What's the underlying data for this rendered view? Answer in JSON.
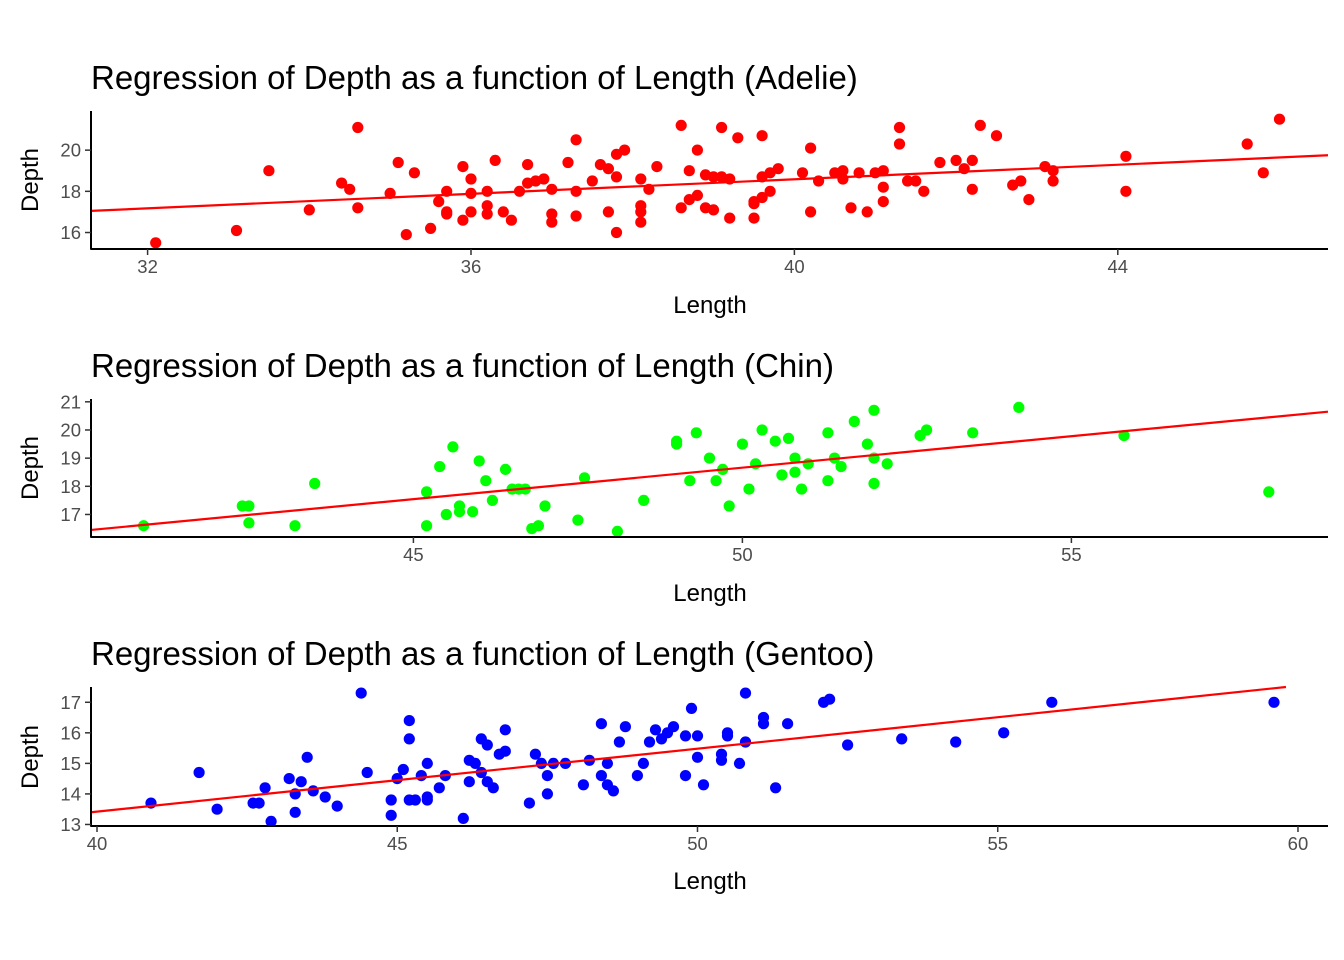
{
  "chart_data": [
    {
      "type": "scatter",
      "title": "Regression of Depth as a function of Length (Adelie)",
      "xlabel": "Length",
      "ylabel": "Depth",
      "xlim": [
        31.3,
        46.6
      ],
      "ylim": [
        15.2,
        21.9
      ],
      "xticks": [
        32,
        36,
        40,
        44
      ],
      "yticks": [
        16,
        18,
        20
      ],
      "color": "#ff0000",
      "line_color": "#ff0000",
      "regression": {
        "x": [
          31.3,
          46.6
        ],
        "y": [
          17.05,
          19.75
        ]
      },
      "series": [
        {
          "x": [
            32.1,
            33.1,
            33.5,
            34.0,
            34.4,
            34.5,
            34.6,
            34.6,
            35.0,
            35.1,
            35.2,
            35.3,
            35.5,
            35.6,
            35.7,
            35.7,
            35.7,
            35.9,
            35.9,
            36.0,
            36.0,
            36.0,
            36.2,
            36.2,
            36.2,
            36.3,
            36.4,
            36.5,
            36.6,
            36.7,
            36.7,
            36.8,
            36.9,
            37.0,
            37.0,
            37.0,
            37.2,
            37.3,
            37.3,
            37.3,
            37.5,
            37.6,
            37.7,
            37.7,
            37.8,
            37.8,
            37.8,
            37.9,
            38.1,
            38.1,
            38.1,
            38.1,
            38.2,
            38.3,
            38.6,
            38.6,
            38.7,
            38.7,
            38.8,
            38.8,
            38.9,
            38.9,
            39.0,
            39.0,
            39.1,
            39.1,
            39.2,
            39.2,
            39.3,
            39.5,
            39.5,
            39.5,
            39.6,
            39.6,
            39.6,
            39.7,
            39.7,
            39.8,
            40.1,
            40.2,
            40.2,
            40.3,
            40.5,
            40.6,
            40.6,
            40.7,
            40.8,
            40.9,
            41.0,
            41.1,
            41.1,
            41.1,
            41.3,
            41.3,
            41.4,
            41.5,
            41.6,
            41.8,
            42.0,
            42.1,
            42.2,
            42.2,
            42.3,
            42.5,
            42.7,
            42.8,
            42.9,
            43.1,
            43.2,
            43.2,
            44.1,
            44.1,
            45.6,
            45.8,
            46.0
          ],
          "y": [
            15.5,
            16.1,
            19.0,
            17.1,
            18.4,
            18.1,
            21.1,
            17.2,
            17.9,
            19.4,
            15.9,
            18.9,
            16.2,
            17.5,
            18.0,
            16.9,
            17.0,
            19.2,
            16.6,
            17.9,
            18.6,
            17.0,
            17.3,
            16.9,
            18.0,
            19.5,
            17.0,
            16.6,
            18.0,
            18.4,
            19.3,
            18.5,
            18.6,
            16.9,
            16.5,
            18.1,
            19.4,
            20.5,
            18.0,
            16.8,
            18.5,
            19.3,
            19.1,
            17.0,
            19.8,
            18.7,
            16.0,
            20.0,
            18.6,
            17.0,
            17.3,
            16.5,
            18.1,
            19.2,
            21.2,
            17.2,
            19.0,
            17.6,
            20.0,
            17.8,
            18.8,
            17.2,
            18.7,
            17.1,
            21.1,
            18.7,
            18.6,
            16.7,
            20.6,
            16.7,
            17.4,
            17.5,
            18.7,
            20.7,
            17.7,
            18.9,
            18.0,
            19.1,
            18.9,
            20.1,
            17.0,
            18.5,
            18.9,
            19.0,
            18.6,
            17.2,
            18.9,
            17.0,
            18.9,
            18.2,
            19.0,
            17.5,
            21.1,
            20.3,
            18.5,
            18.5,
            18.0,
            19.4,
            19.5,
            19.1,
            19.5,
            18.1,
            21.2,
            20.7,
            18.3,
            18.5,
            17.6,
            19.2,
            19.0,
            18.5,
            19.7,
            18.0,
            20.3,
            18.9,
            21.5
          ]
        }
      ]
    },
    {
      "type": "scatter",
      "title": "Regression of Depth as a function of Length (Chin)",
      "xlabel": "Length",
      "ylabel": "Depth",
      "xlim": [
        40.1,
        58.9
      ],
      "ylim": [
        16.2,
        21.1
      ],
      "xticks": [
        45,
        50,
        55
      ],
      "yticks": [
        17,
        18,
        19,
        20,
        21
      ],
      "color": "#00ff00",
      "line_color": "#ff0000",
      "regression": {
        "x": [
          40.1,
          58.9
        ],
        "y": [
          16.45,
          20.65
        ]
      },
      "series": [
        {
          "x": [
            40.9,
            42.4,
            42.5,
            42.5,
            43.2,
            43.5,
            45.2,
            45.2,
            45.4,
            45.5,
            45.6,
            45.7,
            45.7,
            45.9,
            46.0,
            46.1,
            46.2,
            46.4,
            46.5,
            46.6,
            46.7,
            46.8,
            46.9,
            47.0,
            47.5,
            47.6,
            48.1,
            48.5,
            49.0,
            49.0,
            49.2,
            49.3,
            49.5,
            49.6,
            49.7,
            49.8,
            50.0,
            50.1,
            50.2,
            50.3,
            50.5,
            50.6,
            50.7,
            50.8,
            50.8,
            50.9,
            51.0,
            51.3,
            51.3,
            51.4,
            51.5,
            51.7,
            51.9,
            52.0,
            52.0,
            52.0,
            52.2,
            52.7,
            52.8,
            53.5,
            54.2,
            55.8,
            58.0
          ],
          "y": [
            16.6,
            17.3,
            17.3,
            16.7,
            16.6,
            18.1,
            17.8,
            16.6,
            18.7,
            17.0,
            19.4,
            17.3,
            17.1,
            17.1,
            18.9,
            18.2,
            17.5,
            18.6,
            17.9,
            17.9,
            17.9,
            16.5,
            16.6,
            17.3,
            16.8,
            18.3,
            16.4,
            17.5,
            19.5,
            19.6,
            18.2,
            19.9,
            19.0,
            18.2,
            18.6,
            17.3,
            19.5,
            17.9,
            18.8,
            20.0,
            19.6,
            18.4,
            19.7,
            18.5,
            19.0,
            17.9,
            18.8,
            18.2,
            19.9,
            19.0,
            18.7,
            20.3,
            19.5,
            18.1,
            20.7,
            19.0,
            18.8,
            19.8,
            20.0,
            19.9,
            20.8,
            19.8,
            17.8
          ]
        }
      ]
    },
    {
      "type": "scatter",
      "title": "Regression of Depth as a function of Length (Gentoo)",
      "xlabel": "Length",
      "ylabel": "Depth",
      "xlim": [
        39.9,
        60.5
      ],
      "ylim": [
        12.95,
        17.5
      ],
      "xticks": [
        40,
        45,
        50,
        55,
        60
      ],
      "yticks": [
        13,
        14,
        15,
        16,
        17
      ],
      "color": "#0000ff",
      "line_color": "#ff0000",
      "regression": {
        "x": [
          39.9,
          59.8
        ],
        "y": [
          13.4,
          17.5
        ]
      },
      "series": [
        {
          "x": [
            40.9,
            41.7,
            42.0,
            42.6,
            42.7,
            42.8,
            42.9,
            43.2,
            43.3,
            43.3,
            43.4,
            43.5,
            43.6,
            43.8,
            44.0,
            44.4,
            44.5,
            44.9,
            44.9,
            45.0,
            45.1,
            45.2,
            45.2,
            45.2,
            45.3,
            45.4,
            45.5,
            45.5,
            45.5,
            45.7,
            45.8,
            46.1,
            46.2,
            46.2,
            46.3,
            46.4,
            46.4,
            46.5,
            46.5,
            46.6,
            46.7,
            46.8,
            46.8,
            47.2,
            47.3,
            47.4,
            47.5,
            47.5,
            47.6,
            47.8,
            48.1,
            48.2,
            48.4,
            48.4,
            48.5,
            48.5,
            48.6,
            48.7,
            48.8,
            49.0,
            49.1,
            49.2,
            49.3,
            49.4,
            49.5,
            49.6,
            49.8,
            49.8,
            49.9,
            50.0,
            50.0,
            50.1,
            50.4,
            50.4,
            50.5,
            50.5,
            50.7,
            50.8,
            50.8,
            51.1,
            51.1,
            51.3,
            51.5,
            52.1,
            52.2,
            52.5,
            53.4,
            54.3,
            55.1,
            55.9,
            59.6
          ],
          "y": [
            13.7,
            14.7,
            13.5,
            13.7,
            13.7,
            14.2,
            13.1,
            14.5,
            14.0,
            13.4,
            14.4,
            15.2,
            14.1,
            13.9,
            13.6,
            17.3,
            14.7,
            13.8,
            13.3,
            14.5,
            14.8,
            16.4,
            15.8,
            13.8,
            13.8,
            14.6,
            15.0,
            13.9,
            13.8,
            14.2,
            14.6,
            13.2,
            15.1,
            14.4,
            15.0,
            14.7,
            15.8,
            14.4,
            15.6,
            14.2,
            15.3,
            16.1,
            15.4,
            13.7,
            15.3,
            15.0,
            14.6,
            14.0,
            15.0,
            15.0,
            14.3,
            15.1,
            16.3,
            14.6,
            15.0,
            14.3,
            14.1,
            15.7,
            16.2,
            14.6,
            15.0,
            15.7,
            16.1,
            15.8,
            16.0,
            16.2,
            14.6,
            15.9,
            16.8,
            15.2,
            15.9,
            14.3,
            15.3,
            15.1,
            16.0,
            15.9,
            15.0,
            15.7,
            17.3,
            16.5,
            16.3,
            14.2,
            16.3,
            17.0,
            17.1,
            15.6,
            15.8,
            15.7,
            16.0,
            17.0,
            17.0
          ]
        }
      ]
    }
  ]
}
